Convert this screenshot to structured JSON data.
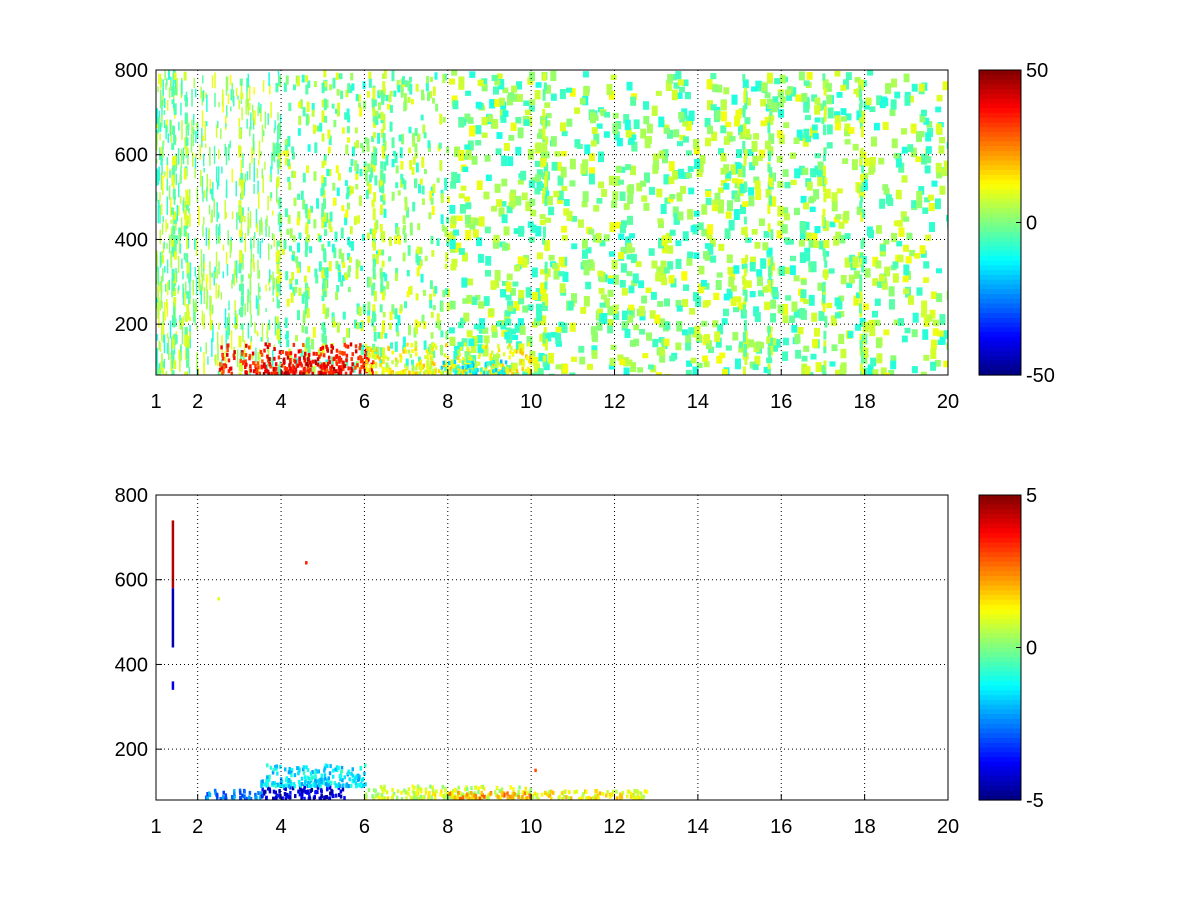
{
  "chart_data": [
    {
      "type": "heatmap",
      "title": "",
      "xlabel": "",
      "ylabel": "",
      "xlim": [
        1,
        20
      ],
      "ylim": [
        80,
        800
      ],
      "grid": true,
      "grid_style": "dotted",
      "x_ticks": [
        1,
        2,
        4,
        6,
        8,
        10,
        12,
        14,
        16,
        18,
        20
      ],
      "y_ticks": [
        200,
        400,
        600,
        800
      ],
      "colormap": "jet",
      "color_range": [
        -50,
        50
      ],
      "colorbar_ticks": [
        50,
        0,
        -50
      ],
      "colorbar_position": "right",
      "pattern": "sparse scattered cells everywhere (mostly near zero, green/yellow/cyan); warm values (up to ~40) concentrated near the bottom (y<150) for x between 2.5 and 7; density decreases with x",
      "clusters": [
        {
          "x": [
            2.5,
            6.2
          ],
          "y": [
            80,
            150
          ],
          "value": 35
        },
        {
          "x": [
            3.5,
            5.5
          ],
          "y": [
            80,
            120
          ],
          "value": 40
        },
        {
          "x": [
            6,
            10
          ],
          "y": [
            80,
            150
          ],
          "value": 12
        },
        {
          "x": [
            7.8,
            9.5
          ],
          "y": [
            80,
            110
          ],
          "value": -12
        }
      ]
    },
    {
      "type": "heatmap",
      "title": "",
      "xlabel": "",
      "ylabel": "",
      "xlim": [
        1,
        20
      ],
      "ylim": [
        80,
        800
      ],
      "grid": true,
      "grid_style": "dotted",
      "x_ticks": [
        1,
        2,
        4,
        6,
        8,
        10,
        12,
        14,
        16,
        18,
        20
      ],
      "y_ticks": [
        200,
        400,
        600,
        800
      ],
      "colormap": "jet",
      "color_range": [
        -5,
        5
      ],
      "colorbar_ticks": [
        5,
        0,
        -5
      ],
      "colorbar_position": "right",
      "pattern": "mostly empty; cells only near the bottom (y<160) for x between 2 and 12.8, plus a narrow vertical streak near x=1.4",
      "cells": [
        {
          "x": 1.4,
          "y": [
            580,
            740
          ],
          "value": 4.5
        },
        {
          "x": 1.4,
          "y": [
            440,
            580
          ],
          "value": -4.5
        },
        {
          "x": 1.4,
          "y": [
            340,
            360
          ],
          "value": -4
        },
        {
          "x": 4.6,
          "y": 640,
          "value": 3.5
        },
        {
          "x": 2.5,
          "y": 555,
          "value": 1
        },
        {
          "x": 10.1,
          "y": 150,
          "value": 3
        }
      ],
      "clusters": [
        {
          "x": [
            2,
            3.5
          ],
          "y": [
            80,
            100
          ],
          "value": -2.5
        },
        {
          "x": [
            3.5,
            5.5
          ],
          "y": [
            80,
            110
          ],
          "value": -4
        },
        {
          "x": [
            3.5,
            6
          ],
          "y": [
            110,
            160
          ],
          "value": -1.5
        },
        {
          "x": [
            6,
            10
          ],
          "y": [
            80,
            110
          ],
          "value": 0.8
        },
        {
          "x": [
            8,
            10
          ],
          "y": [
            80,
            95
          ],
          "value": 2.2
        },
        {
          "x": [
            10,
            12.8
          ],
          "y": [
            80,
            100
          ],
          "value": 1.2
        }
      ]
    }
  ]
}
